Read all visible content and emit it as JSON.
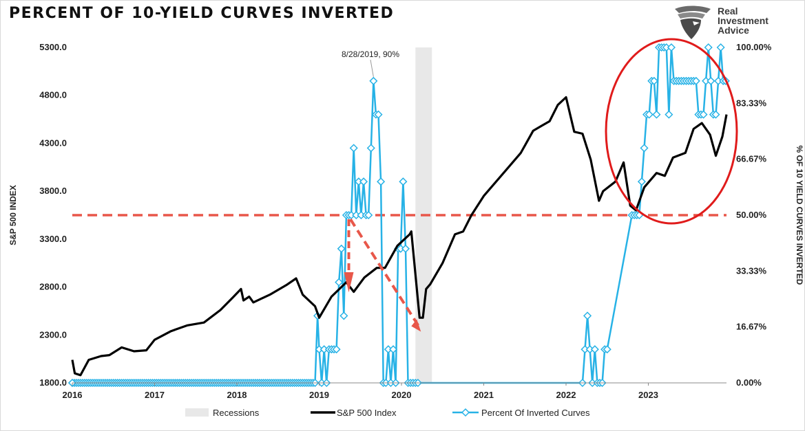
{
  "title": "PERCENT OF 10-YIELD CURVES INVERTED",
  "logo": {
    "line1": "Real",
    "line2": "Investment",
    "line3": "Advice"
  },
  "colors": {
    "sp500": "#000000",
    "inverted": "#27b2e6",
    "recession": "#e8e8e8",
    "dashed_red": "#e8574a",
    "circle": "#e01b1b"
  },
  "chart_data": {
    "type": "line",
    "title": "PERCENT OF 10-YIELD CURVES INVERTED",
    "xlabel": "",
    "ylabel": "S&P 500 INDEX",
    "y2label": "% OF 10 YIELD CURVES INVERTED",
    "x_ticks": [
      "2016",
      "2017",
      "2018",
      "2019",
      "2020",
      "2021",
      "2022",
      "2023"
    ],
    "xlim": [
      2016.0,
      2023.95
    ],
    "ylim": [
      1800,
      5300
    ],
    "y2lim": [
      0,
      100
    ],
    "y_ticks": [
      "1800.0",
      "2300.0",
      "2800.0",
      "3300.0",
      "3800.0",
      "4300.0",
      "4800.0",
      "5300.0"
    ],
    "y2_ticks": [
      "0.00%",
      "16.67%",
      "33.33%",
      "50.00%",
      "66.67%",
      "83.33%",
      "100.00%"
    ],
    "recessions": [
      [
        2020.17,
        2020.37
      ]
    ],
    "legend": [
      "Recessions",
      "S&P 500 Index",
      "Percent Of Inverted Curves"
    ],
    "legend_position": "bottom",
    "annotation": {
      "text": "8/28/2019, 90%",
      "x": 2019.66,
      "y2": 90
    },
    "reference_line": {
      "y2": 50,
      "label": ""
    },
    "series": [
      {
        "name": "S&P 500 Index",
        "axis": "left",
        "x": [
          2016.0,
          2016.03,
          2016.1,
          2016.2,
          2016.35,
          2016.45,
          2016.6,
          2016.75,
          2016.9,
          2017.0,
          2017.2,
          2017.4,
          2017.6,
          2017.8,
          2017.95,
          2018.05,
          2018.08,
          2018.15,
          2018.2,
          2018.4,
          2018.6,
          2018.72,
          2018.8,
          2018.95,
          2019.0,
          2019.15,
          2019.33,
          2019.42,
          2019.55,
          2019.7,
          2019.8,
          2019.95,
          2020.1,
          2020.12,
          2020.22,
          2020.26,
          2020.3,
          2020.35,
          2020.5,
          2020.65,
          2020.75,
          2020.85,
          2021.0,
          2021.25,
          2021.45,
          2021.6,
          2021.7,
          2021.8,
          2021.9,
          2022.0,
          2022.1,
          2022.2,
          2022.3,
          2022.4,
          2022.45,
          2022.6,
          2022.7,
          2022.78,
          2022.85,
          2022.95,
          2023.1,
          2023.2,
          2023.3,
          2023.45,
          2023.55,
          2023.65,
          2023.75,
          2023.82,
          2023.9,
          2023.95
        ],
        "values": [
          2040,
          1900,
          1880,
          2040,
          2080,
          2090,
          2170,
          2130,
          2140,
          2250,
          2340,
          2400,
          2430,
          2560,
          2690,
          2780,
          2660,
          2700,
          2640,
          2720,
          2820,
          2890,
          2720,
          2600,
          2480,
          2700,
          2850,
          2750,
          2900,
          3000,
          3000,
          3230,
          3350,
          3380,
          2480,
          2480,
          2780,
          2830,
          3050,
          3350,
          3380,
          3550,
          3750,
          4000,
          4200,
          4430,
          4480,
          4530,
          4700,
          4780,
          4420,
          4400,
          4130,
          3700,
          3800,
          3900,
          4100,
          3650,
          3600,
          3840,
          3990,
          3960,
          4150,
          4200,
          4450,
          4510,
          4390,
          4170,
          4370,
          4600
        ]
      },
      {
        "name": "Percent Of Inverted Curves",
        "axis": "right",
        "x": [
          2016.0,
          2018.95,
          2018.98,
          2019.0,
          2019.03,
          2019.06,
          2019.09,
          2019.12,
          2019.15,
          2019.18,
          2019.21,
          2019.24,
          2019.27,
          2019.3,
          2019.33,
          2019.36,
          2019.39,
          2019.42,
          2019.45,
          2019.48,
          2019.51,
          2019.54,
          2019.57,
          2019.6,
          2019.63,
          2019.66,
          2019.69,
          2019.72,
          2019.75,
          2019.78,
          2019.81,
          2019.84,
          2019.87,
          2019.9,
          2019.93,
          2019.96,
          2019.99,
          2020.02,
          2020.05,
          2020.08,
          2020.11,
          2020.14,
          2020.17,
          2020.2,
          2022.2,
          2022.23,
          2022.26,
          2022.29,
          2022.32,
          2022.35,
          2022.38,
          2022.41,
          2022.44,
          2022.47,
          2022.5,
          2022.8,
          2022.83,
          2022.86,
          2022.89,
          2022.92,
          2022.95,
          2022.98,
          2023.01,
          2023.04,
          2023.07,
          2023.1,
          2023.13,
          2023.16,
          2023.19,
          2023.22,
          2023.25,
          2023.28,
          2023.31,
          2023.34,
          2023.37,
          2023.4,
          2023.43,
          2023.46,
          2023.49,
          2023.52,
          2023.55,
          2023.58,
          2023.61,
          2023.64,
          2023.67,
          2023.7,
          2023.73,
          2023.76,
          2023.79,
          2023.82,
          2023.85,
          2023.88,
          2023.91,
          2023.94
        ],
        "values": [
          0,
          0,
          20,
          10,
          0,
          10,
          0,
          10,
          10,
          10,
          10,
          30,
          40,
          20,
          50,
          50,
          50,
          70,
          50,
          60,
          50,
          60,
          50,
          50,
          70,
          90,
          80,
          80,
          60,
          0,
          0,
          10,
          0,
          10,
          0,
          40,
          40,
          60,
          40,
          0,
          0,
          0,
          0,
          0,
          0,
          10,
          20,
          10,
          0,
          10,
          0,
          0,
          0,
          10,
          10,
          50,
          50,
          50,
          50,
          60,
          70,
          80,
          80,
          90,
          90,
          80,
          100,
          100,
          100,
          100,
          80,
          100,
          90,
          90,
          90,
          90,
          90,
          90,
          90,
          90,
          90,
          90,
          80,
          80,
          80,
          90,
          100,
          90,
          80,
          80,
          90,
          100,
          90,
          90
        ]
      }
    ]
  }
}
